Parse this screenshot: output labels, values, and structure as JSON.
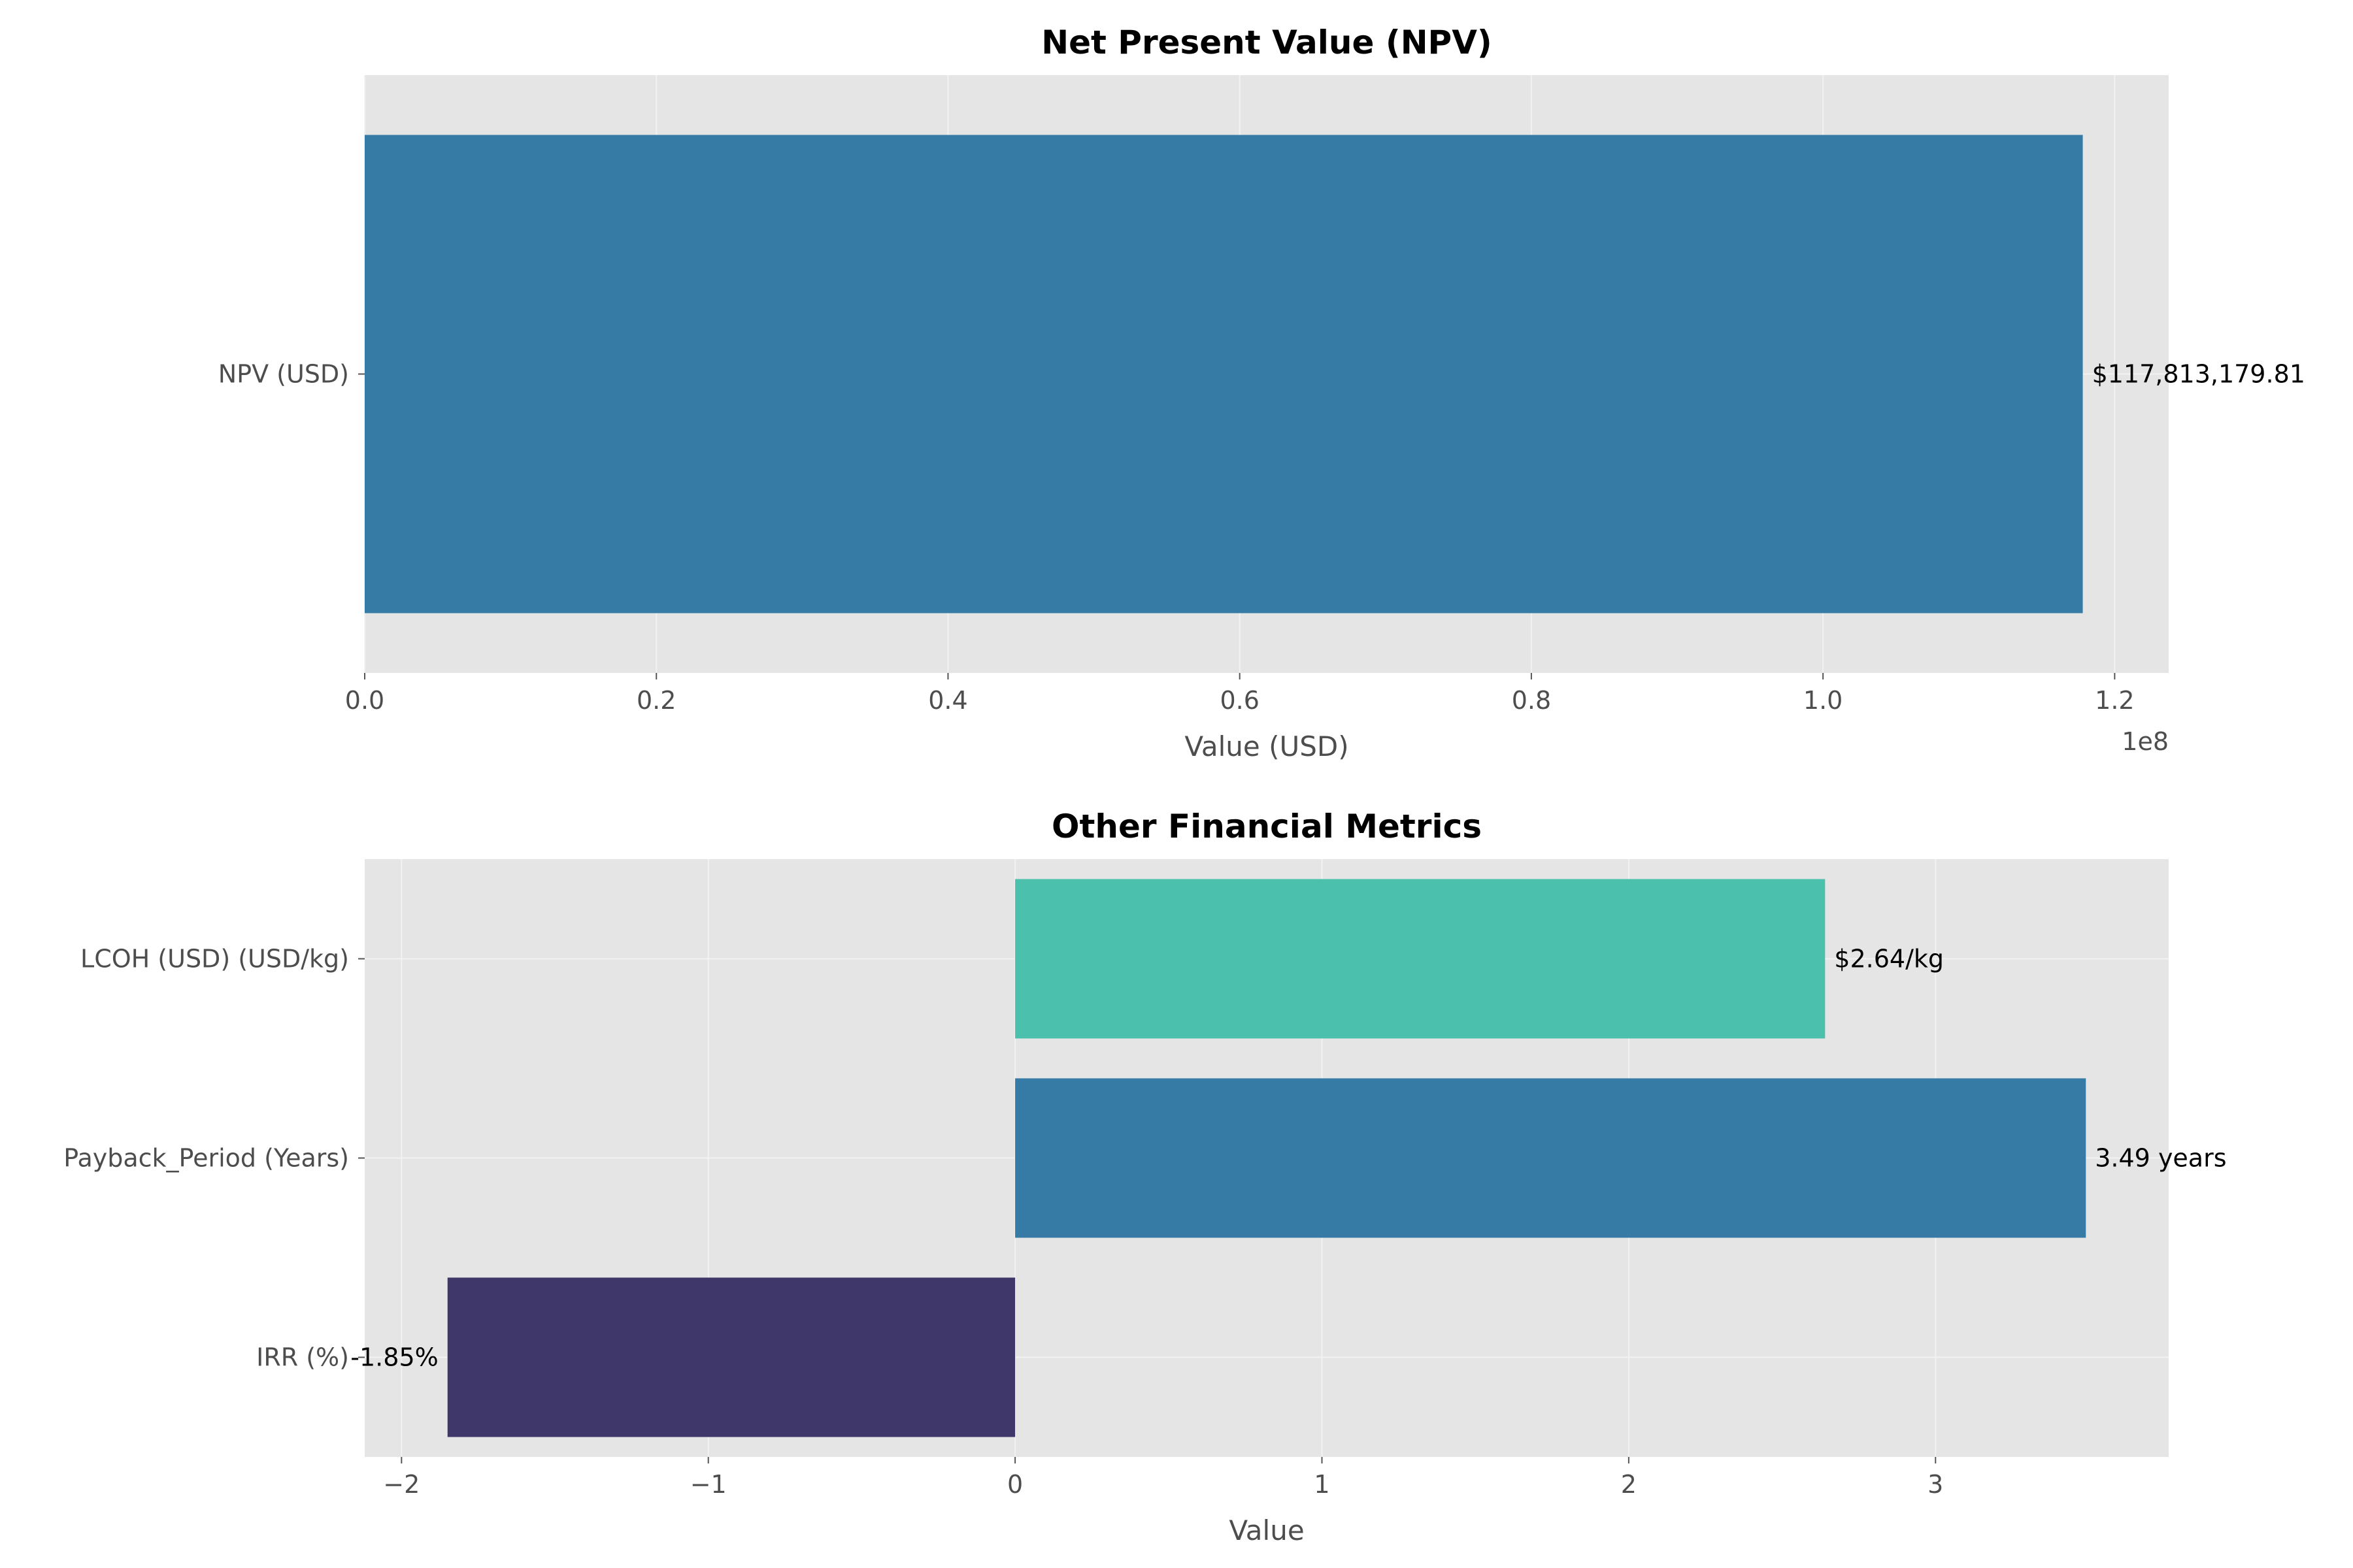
{
  "chart_data": [
    {
      "type": "bar",
      "orientation": "horizontal",
      "title": "Net Present Value (NPV)",
      "xlabel": "Value (USD)",
      "ylabel": "",
      "axis_offset_label": "1e8",
      "categories": [
        "NPV (USD)"
      ],
      "values": [
        117813179.81
      ],
      "data_labels": [
        "$117,813,179.81"
      ],
      "colors": [
        "#367ba5"
      ],
      "xlim": [
        0,
        123703838.8
      ],
      "xticks": [
        0,
        20000000,
        40000000,
        60000000,
        80000000,
        100000000,
        120000000
      ],
      "xtick_labels": [
        "0.0",
        "0.2",
        "0.4",
        "0.6",
        "0.8",
        "1.0",
        "1.2"
      ],
      "grid": true
    },
    {
      "type": "bar",
      "orientation": "horizontal",
      "title": "Other Financial Metrics",
      "xlabel": "Value",
      "ylabel": "",
      "categories": [
        "LCOH (USD) (USD/kg)",
        "Payback_Period (Years)",
        "IRR (%)"
      ],
      "values": [
        2.64,
        3.49,
        -1.85
      ],
      "data_labels": [
        "$2.64/kg",
        "3.49 years",
        "-1.85%"
      ],
      "colors": [
        "#4bc0ad",
        "#367ba5",
        "#3f366a"
      ],
      "xlim": [
        -2.12,
        3.76
      ],
      "xticks": [
        -2,
        -1,
        0,
        1,
        2,
        3
      ],
      "xtick_labels": [
        "−2",
        "−1",
        "0",
        "1",
        "2",
        "3"
      ],
      "grid": true
    }
  ],
  "style": {
    "panel_bg": "#e5e5e5",
    "grid_color": "#f2f2f2",
    "tick_color": "#555555"
  }
}
